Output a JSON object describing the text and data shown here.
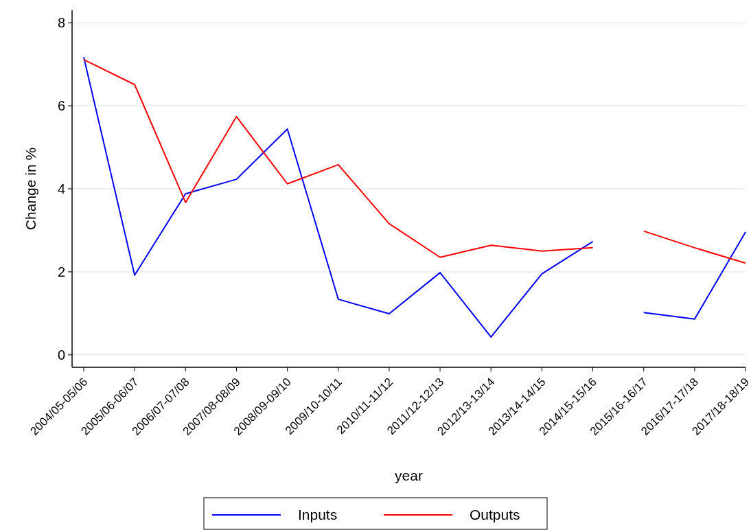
{
  "chart_data": {
    "type": "line",
    "xlabel": "year",
    "ylabel": "Change in %",
    "categories": [
      "2004/05-05/06",
      "2005/06-06/07",
      "2006/07-07/08",
      "2007/08-08/09",
      "2008/09-09/10",
      "2009/10-10/11",
      "2010/11-11/12",
      "2011/12-12/13",
      "2012/13-13/14",
      "2013/14-14/15",
      "2014/15-15/16",
      "2015/16-16/17",
      "2016/17-17/18",
      "2017/18-18/19"
    ],
    "series": [
      {
        "name": "Inputs",
        "color": "#0000ff",
        "values": [
          7.17,
          1.92,
          3.88,
          4.23,
          5.44,
          1.34,
          0.99,
          1.98,
          0.43,
          1.95,
          2.73,
          null,
          null,
          null
        ]
      },
      {
        "name": "Outputs",
        "color": "#ff0000",
        "values": [
          7.11,
          6.51,
          3.67,
          5.74,
          4.12,
          4.58,
          3.16,
          2.35,
          2.64,
          2.5,
          2.58,
          null,
          null,
          null
        ]
      },
      {
        "color": "#0000ff",
        "values": [
          null,
          null,
          null,
          null,
          null,
          null,
          null,
          null,
          null,
          null,
          null,
          1.02,
          0.86,
          2.96
        ]
      },
      {
        "color": "#ff0000",
        "values": [
          null,
          null,
          null,
          null,
          null,
          null,
          null,
          null,
          null,
          null,
          null,
          2.98,
          2.58,
          2.21
        ]
      }
    ],
    "ylim": [
      -0.3,
      8.3
    ],
    "yticks": [
      0,
      2,
      4,
      6,
      8
    ],
    "grid": "y",
    "legend": "bottom",
    "marker": "none",
    "line_style": "solid"
  }
}
